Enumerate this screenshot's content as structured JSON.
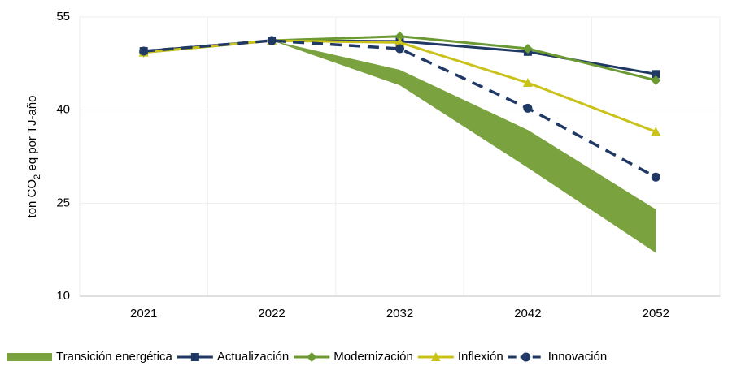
{
  "chart_data": {
    "type": "line",
    "ylabel": [
      "ton CO",
      "2",
      " eq por TJ-año"
    ],
    "categories": [
      "2021",
      "2022",
      "2032",
      "2042",
      "2052"
    ],
    "ylim": [
      10,
      55
    ],
    "yticks": [
      10,
      25,
      40,
      55
    ],
    "grid": true,
    "legend": "bottom",
    "band": {
      "name": "Transición energética",
      "color": "#7aa23f",
      "upper": [
        49.3,
        51.2,
        46.5,
        36.8,
        24.0
      ],
      "lower": [
        49.3,
        51.2,
        44.0,
        30.7,
        17.0
      ]
    },
    "series": [
      {
        "name": "Actualización",
        "color": "#1f3864",
        "marker": "square",
        "dash": false,
        "values": [
          49.5,
          51.2,
          51.1,
          49.4,
          45.8
        ]
      },
      {
        "name": "Modernización",
        "color": "#6b9a33",
        "marker": "diamond",
        "dash": false,
        "values": [
          49.3,
          51.2,
          51.9,
          49.9,
          44.8
        ]
      },
      {
        "name": "Inflexión",
        "color": "#c9c21a",
        "marker": "triangle",
        "dash": false,
        "values": [
          49.3,
          51.2,
          50.9,
          44.4,
          36.5
        ]
      },
      {
        "name": "Innovación",
        "color": "#1f3864",
        "marker": "circle",
        "dash": true,
        "values": [
          49.5,
          51.2,
          49.9,
          40.3,
          29.2
        ]
      }
    ]
  }
}
